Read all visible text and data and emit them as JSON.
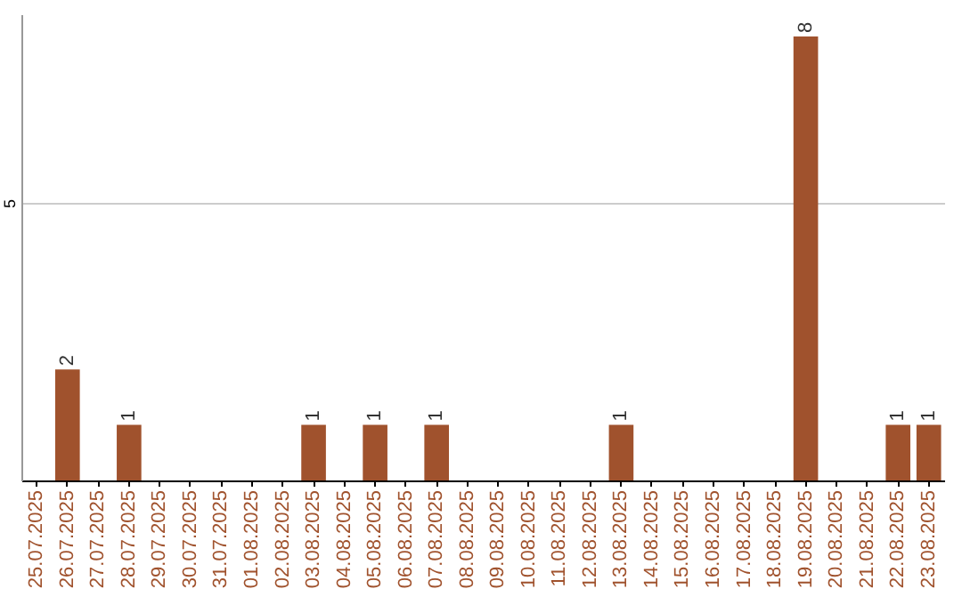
{
  "chart_data": {
    "type": "bar",
    "categories": [
      "25.07.2025",
      "26.07.2025",
      "27.07.2025",
      "28.07.2025",
      "29.07.2025",
      "30.07.2025",
      "31.07.2025",
      "01.08.2025",
      "02.08.2025",
      "03.08.2025",
      "04.08.2025",
      "05.08.2025",
      "06.08.2025",
      "07.08.2025",
      "08.08.2025",
      "09.08.2025",
      "10.08.2025",
      "11.08.2025",
      "12.08.2025",
      "13.08.2025",
      "14.08.2025",
      "15.08.2025",
      "16.08.2025",
      "17.08.2025",
      "18.08.2025",
      "19.08.2025",
      "20.08.2025",
      "21.08.2025",
      "22.08.2025",
      "23.08.2025"
    ],
    "values": [
      null,
      2,
      null,
      1,
      null,
      null,
      null,
      null,
      null,
      1,
      null,
      1,
      null,
      1,
      null,
      null,
      null,
      null,
      null,
      1,
      null,
      null,
      null,
      null,
      null,
      8,
      null,
      null,
      1,
      1
    ],
    "color": "#a0522d",
    "ylim": [
      0,
      8.4
    ],
    "yticks": [
      5
    ],
    "grid": "y",
    "data_labels": true
  }
}
